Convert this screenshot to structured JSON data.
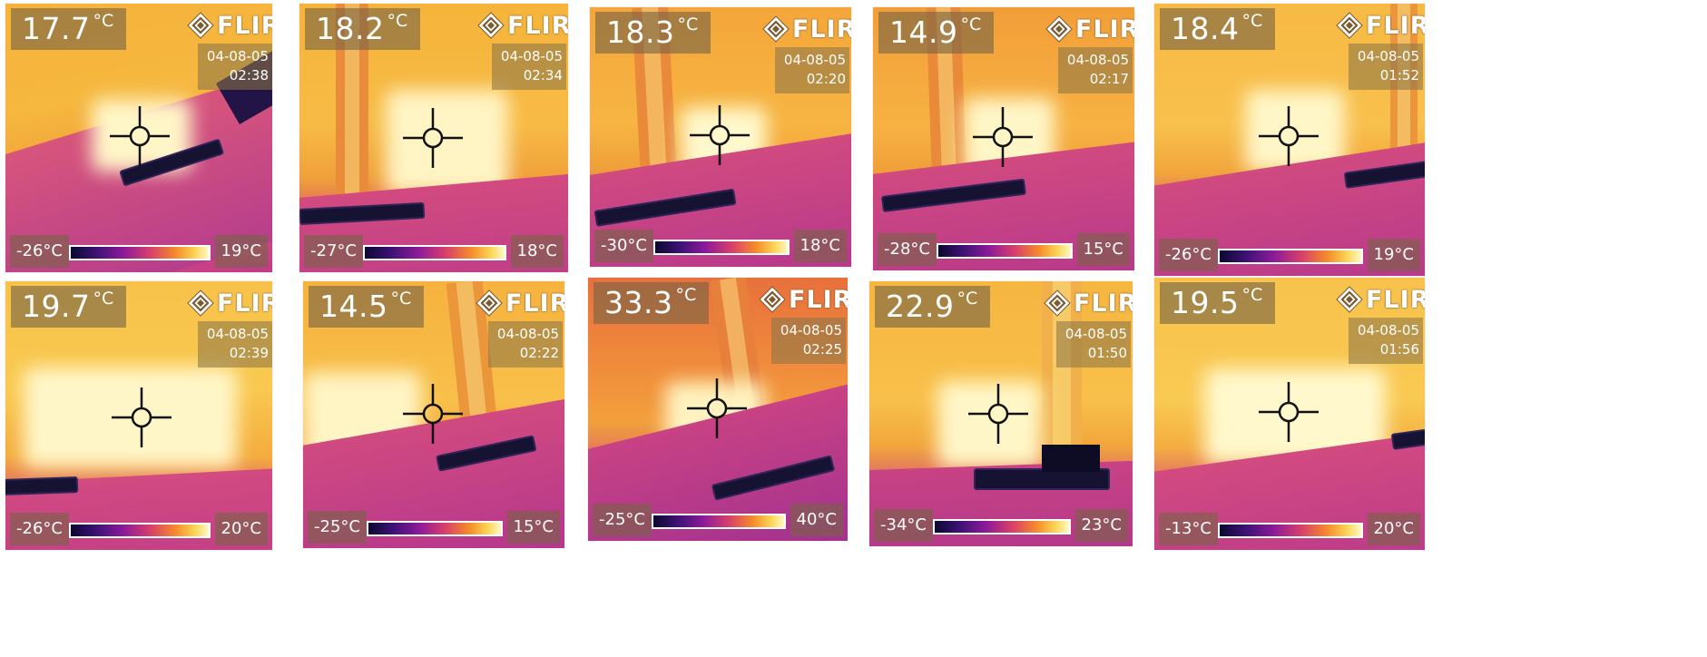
{
  "camera_logo": "FLIR",
  "colors": {
    "overlay": "#78644a",
    "text": "#ffffff",
    "palette_cold": "#0b0830",
    "palette_mid": "#8b1a9a",
    "palette_warm": "#f58b2b",
    "palette_hot": "#fff9c6"
  },
  "icons": [
    "flir-logo-icon",
    "crosshair-icon"
  ],
  "images": [
    {
      "spot_value": "17.7",
      "spot_unit": "°C",
      "date": "04-08-05",
      "time": "02:38",
      "scale_min": "-26°C",
      "scale_max": "19°C"
    },
    {
      "spot_value": "18.2",
      "spot_unit": "°C",
      "date": "04-08-05",
      "time": "02:34",
      "scale_min": "-27°C",
      "scale_max": "18°C"
    },
    {
      "spot_value": "18.3",
      "spot_unit": "°C",
      "date": "04-08-05",
      "time": "02:20",
      "scale_min": "-30°C",
      "scale_max": "18°C"
    },
    {
      "spot_value": "14.9",
      "spot_unit": "°C",
      "date": "04-08-05",
      "time": "02:17",
      "scale_min": "-28°C",
      "scale_max": "15°C"
    },
    {
      "spot_value": "18.4",
      "spot_unit": "°C",
      "date": "04-08-05",
      "time": "01:52",
      "scale_min": "-26°C",
      "scale_max": "19°C"
    },
    {
      "spot_value": "19.7",
      "spot_unit": "°C",
      "date": "04-08-05",
      "time": "02:39",
      "scale_min": "-26°C",
      "scale_max": "20°C"
    },
    {
      "spot_value": "14.5",
      "spot_unit": "°C",
      "date": "04-08-05",
      "time": "02:22",
      "scale_min": "-25°C",
      "scale_max": "15°C"
    },
    {
      "spot_value": "33.3",
      "spot_unit": "°C",
      "date": "04-08-05",
      "time": "02:25",
      "scale_min": "-25°C",
      "scale_max": "40°C"
    },
    {
      "spot_value": "22.9",
      "spot_unit": "°C",
      "date": "04-08-05",
      "time": "01:50",
      "scale_min": "-34°C",
      "scale_max": "23°C"
    },
    {
      "spot_value": "19.5",
      "spot_unit": "°C",
      "date": "04-08-05",
      "time": "01:56",
      "scale_min": "-13°C",
      "scale_max": "20°C"
    }
  ]
}
